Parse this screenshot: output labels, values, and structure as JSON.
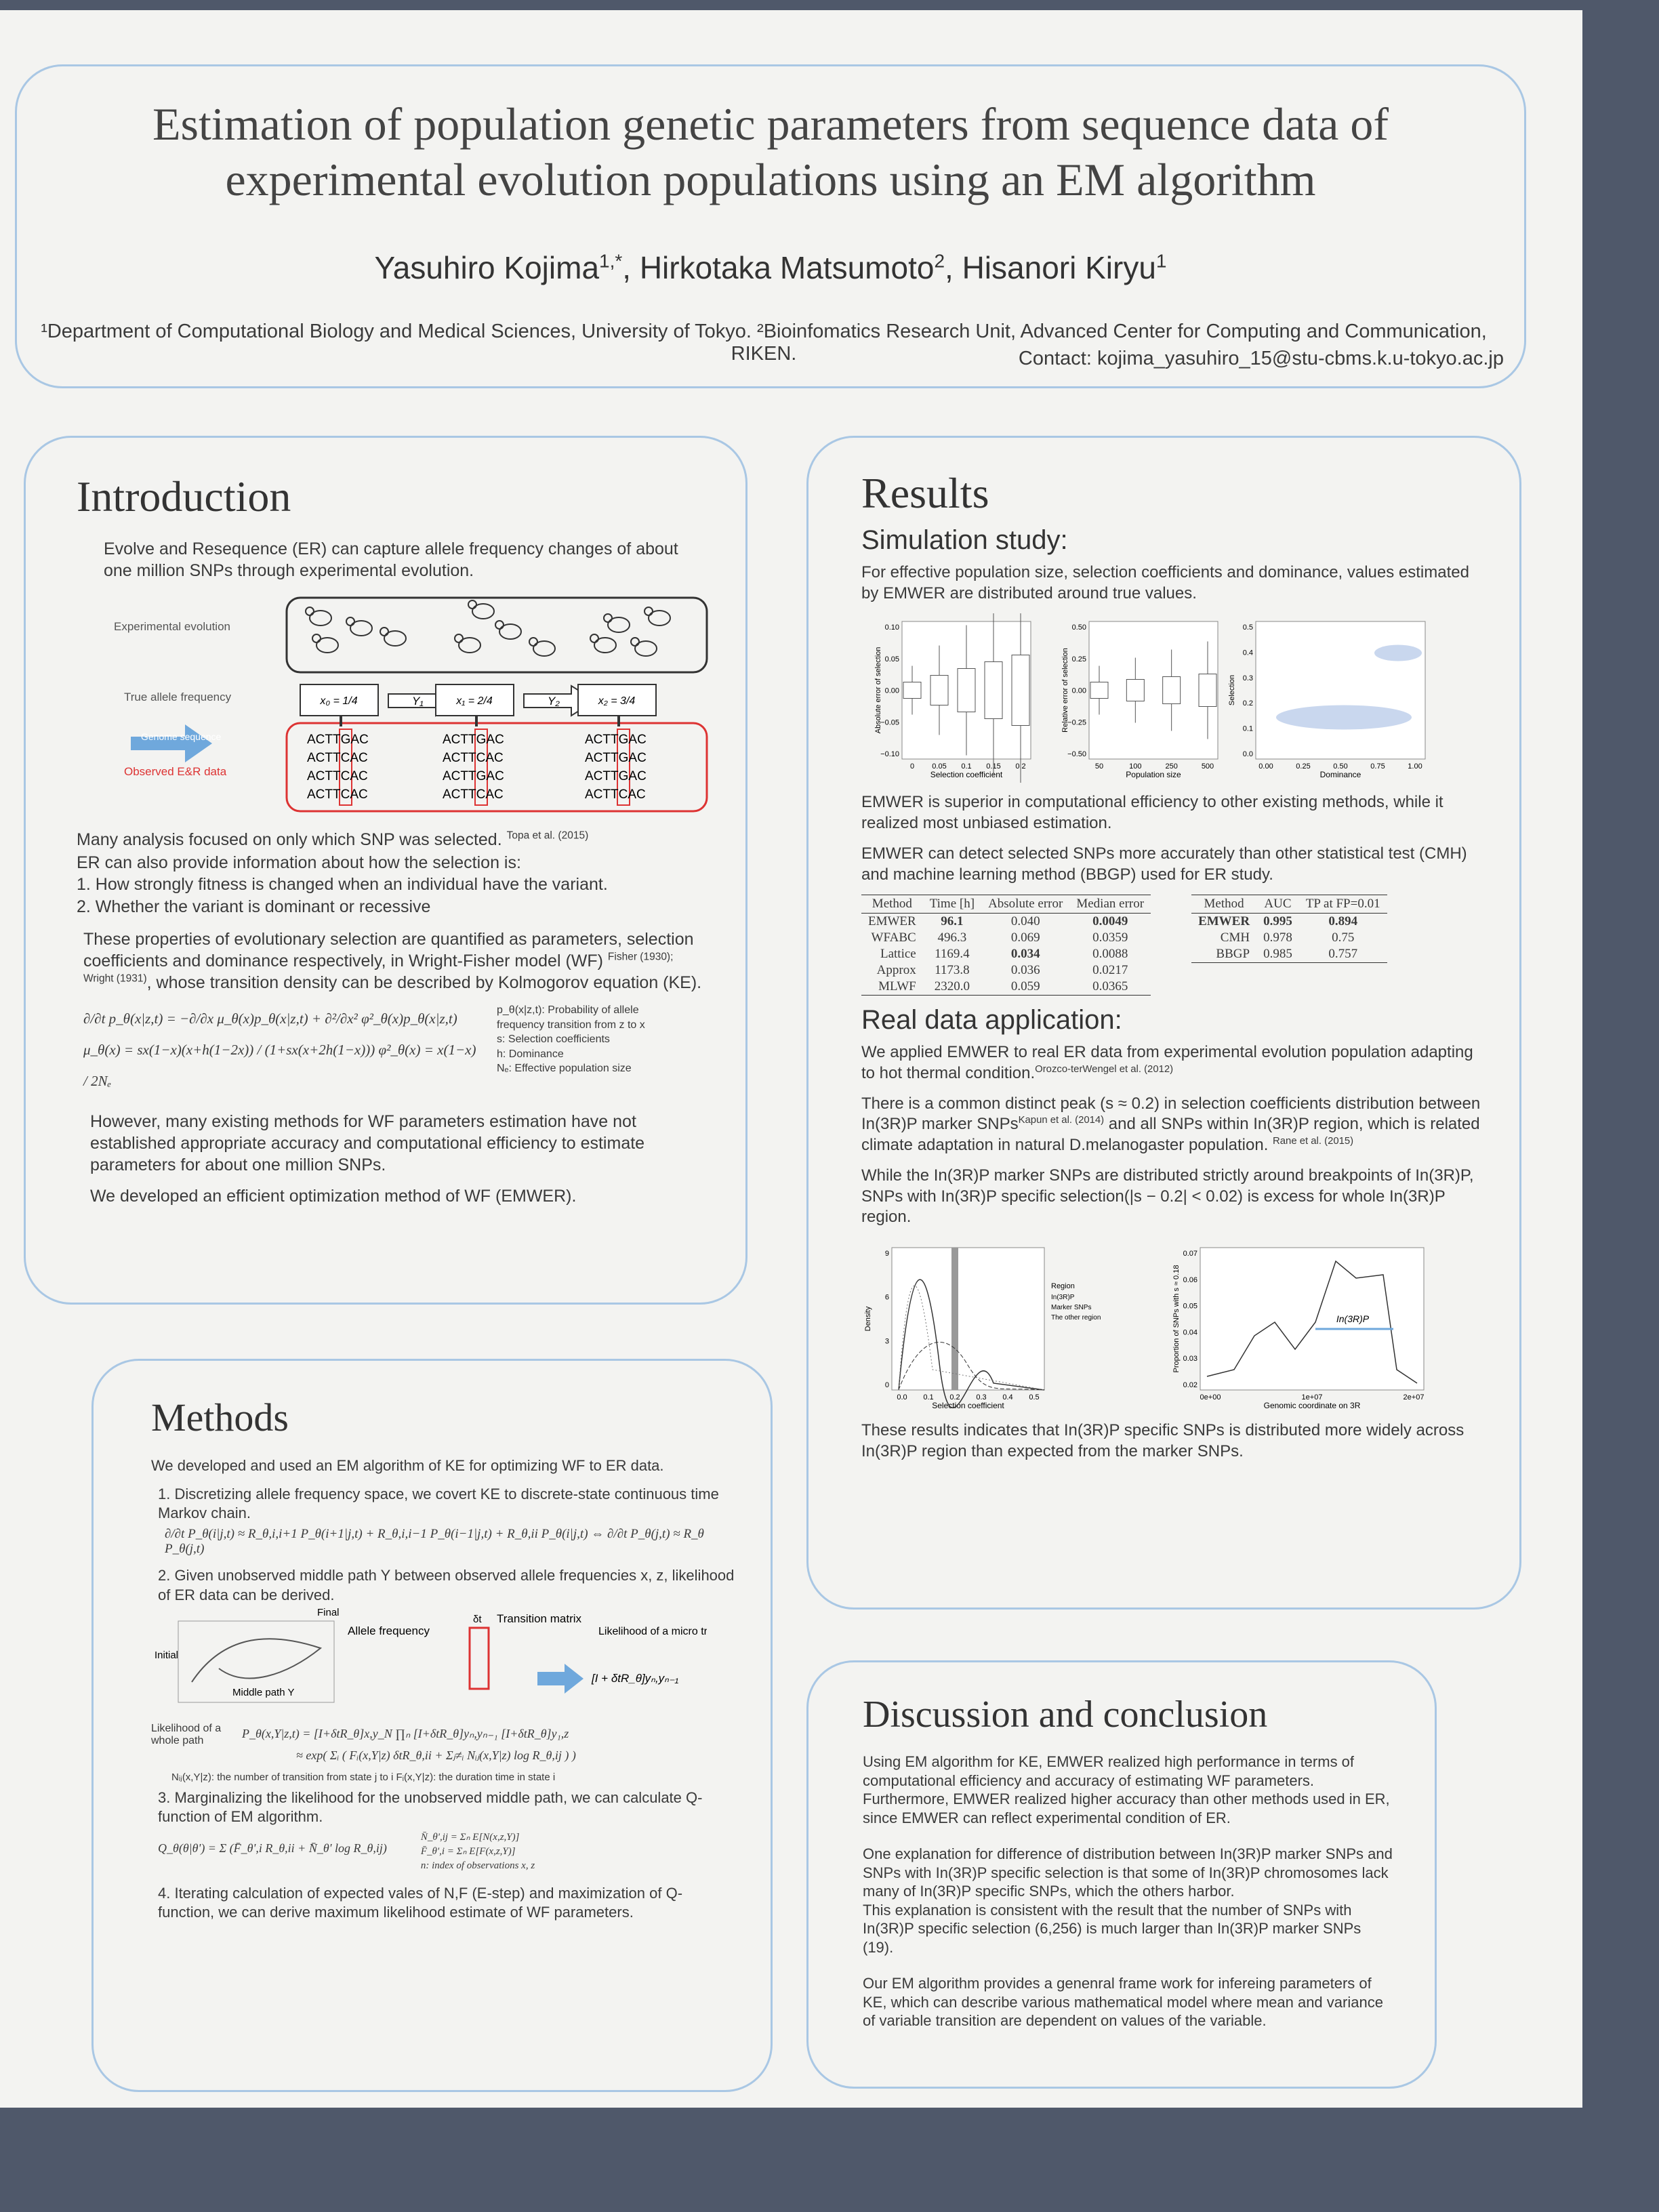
{
  "header": {
    "title": "Estimation of population genetic parameters from sequence data of experimental evolution populations using an EM algorithm",
    "authors": [
      "Yasuhiro Kojima",
      ", Hirkotaka Matsumoto",
      ", Hisanori Kiryu"
    ],
    "author_sups": [
      "1,*",
      "2",
      "1"
    ],
    "affiliation": "¹Department of Computational Biology and Medical Sciences, University of Tokyo. ²Bioinfomatics Research Unit, Advanced Center for Computing and Communication, RIKEN.",
    "contact": "Contact: kojima_yasuhiro_15@stu-cbms.k.u-tokyo.ac.jp"
  },
  "introduction": {
    "heading": "Introduction",
    "p1": "Evolve and Resequence (ER) can capture allele frequency changes of about one million SNPs through experimental evolution.",
    "figure": {
      "experimental": "Experimental evolution",
      "true_freq": "True allele frequency",
      "genome": "Genome sequence",
      "observed": "Observed E&R data",
      "states": [
        "x₀ = 1/4",
        "x₁ = 2/4",
        "x₂ = 3/4"
      ],
      "paths": [
        "Y₁",
        "Y₂"
      ],
      "reads": [
        [
          [
            "ACTT",
            "G",
            "AC"
          ],
          [
            "ACTT",
            "C",
            "AC"
          ],
          [
            "ACTT",
            "C",
            "AC"
          ],
          [
            "ACTT",
            "C",
            "AC"
          ]
        ],
        [
          [
            "ACTT",
            "G",
            "AC"
          ],
          [
            "ACTT",
            "C",
            "AC"
          ],
          [
            "ACTT",
            "G",
            "AC"
          ],
          [
            "ACTT",
            "C",
            "AC"
          ]
        ],
        [
          [
            "ACTT",
            "G",
            "AC"
          ],
          [
            "ACTT",
            "G",
            "AC"
          ],
          [
            "ACTT",
            "G",
            "AC"
          ],
          [
            "ACTT",
            "C",
            "AC"
          ]
        ]
      ]
    },
    "p2": "Many analysis focused on only which SNP was selected.",
    "p2_cite": "Topa et al. (2015)",
    "p3": "ER can also provide information about how the selection is:",
    "list": [
      "1.  How strongly fitness is changed when an individual have the variant.",
      "2.  Whether the variant is dominant or recessive"
    ],
    "p4a": "These properties of evolutionary selection are quantified as parameters, selection coefficients and dominance respectively, in Wright-Fisher model (WF)",
    "p4_cite": "Fisher (1930); Wright (1931)",
    "p4b": ", whose transition density can be described by Kolmogorov equation (KE).",
    "equations": [
      "∂/∂t p_θ(x|z,t) = −∂/∂x μ_θ(x)p_θ(x|z,t) + ∂²/∂x² φ²_θ(x)p_θ(x|z,t)",
      "μ_θ(x) = sx(1−x)(x+h(1−2x)) / (1+sx(x+2h(1−x)))    φ²_θ(x) = x(1−x) / 2Nₑ"
    ],
    "legend": [
      "p_θ(x|z,t): Probability of allele frequency transition from z to x",
      "s: Selection coefficients",
      "h: Dominance",
      "Nₑ: Effective population size"
    ],
    "p5": "However, many existing methods for WF parameters estimation have not established appropriate accuracy and computational efficiency to estimate parameters for about one million SNPs.",
    "p6": "We developed  an efficient optimization method of WF (EMWER)."
  },
  "methods": {
    "heading": "Methods",
    "p1": "We developed and used an EM algorithm of KE for optimizing WF to ER data.",
    "step1": "1. Discretizing allele frequency space, we covert KE to discrete-state continuous time Markov chain.",
    "eq1": "∂/∂t P_θ(i|j,t) ≈ R_θ,i,i+1 P_θ(i+1|j,t) + R_θ,i,i−1 P_θ(i−1|j,t) + R_θ,ii P_θ(i|j,t)   ⇔   ∂/∂t P_θ(j,t) ≈ R_θ P_θ(j,t)",
    "step2": "2. Given unobserved middle path Y between observed allele frequencies x, z, likelihood of ER data can be derived.",
    "figure": {
      "initial": "Initial",
      "final": "Final",
      "middle": "Middle path Y",
      "allele": "Allele frequency",
      "matrix": "Transition matrix",
      "micro": "Likelihood of a micro transition",
      "micro_eq": "[I + δtR_θ]yₙ,yₙ₋₁",
      "dt": "δt"
    },
    "eq2_label": "Likelihood of a whole path",
    "eq2": "P_θ(x,Y|z,t) = [I+δtR_θ]x,y_N ∏ₙ [I+δtR_θ]yₙ,yₙ₋₁ [I+δtR_θ]y₁,z",
    "eq2b": "≈ exp( Σᵢ ( Fᵢ(x,Y|z) δtR_θ,ii + Σⱼ≠ᵢ Nᵢⱼ(x,Y|z) log R_θ,ij ) )",
    "note": "Nᵢⱼ(x,Y|z): the number of transition from state j to i        Fᵢ(x,Y|z): the duration time in state i",
    "step3": "3. Marginalizing the likelihood for the unobserved middle path, we can calculate Q-function of EM algorithm.",
    "eq3": "Q_θ(θ|θ') = Σ (F̄_θ',i R_θ,ii + N̄_θ' log R_θ,ij)",
    "eq3_defs": [
      "N̄_θ',ij = Σₙ E[N(x,z,Y)]",
      "F̄_θ',i = Σₙ E[F(x,z,Y)]",
      "n: index of observations x, z"
    ],
    "step4": "4. Iterating calculation of expected vales of N,F (E-step) and maximization of Q-function, we can derive maximum likelihood estimate of WF parameters."
  },
  "results": {
    "heading": "Results",
    "sub1": "Simulation study:",
    "p1": "For effective population size, selection coefficients and dominance, values estimated by EMWER are distributed around true values.",
    "plots": [
      {
        "ylabel": "Absolute error of selection",
        "yticks": [
          "0.10",
          "0.05",
          "0.00",
          "−0.05",
          "−0.10"
        ],
        "xlabel": "Selection coefficient",
        "xticks": [
          "0",
          "0.05",
          "0.1",
          "0.15",
          "0.2"
        ]
      },
      {
        "ylabel": "Relative error of selection",
        "yticks": [
          "0.50",
          "0.25",
          "0.00",
          "−0.25",
          "−0.50"
        ],
        "xlabel": "Population size",
        "xticks": [
          "50",
          "100",
          "250",
          "500"
        ]
      },
      {
        "ylabel": "Selection",
        "yticks": [
          "0.5",
          "0.4",
          "0.3",
          "0.2",
          "0.1",
          "0.0"
        ],
        "xlabel": "Dominance",
        "xticks": [
          "0.00",
          "0.25",
          "0.50",
          "0.75",
          "1.00"
        ]
      }
    ],
    "p2": "EMWER is superior in computational efficiency to other existing methods, while it realized most unbiased estimation.",
    "p3": "EMWER can detect selected SNPs more accurately than other statistical test (CMH) and machine learning method (BBGP) used for ER study.",
    "table1": {
      "headers": [
        "Method",
        "Time [h]",
        "Absolute error",
        "Median error"
      ],
      "rows": [
        [
          "EMWER",
          "96.1",
          "0.040",
          "0.0049"
        ],
        [
          "WFABC",
          "496.3",
          "0.069",
          "0.0359"
        ],
        [
          "Lattice",
          "1169.4",
          "0.034",
          "0.0088"
        ],
        [
          "Approx",
          "1173.8",
          "0.036",
          "0.0217"
        ],
        [
          "MLWF",
          "2320.0",
          "0.059",
          "0.0365"
        ]
      ],
      "bold": [
        [
          0,
          1
        ],
        [
          2,
          2
        ],
        [
          0,
          3
        ]
      ]
    },
    "table2": {
      "headers": [
        "Method",
        "AUC",
        "TP at FP=0.01"
      ],
      "rows": [
        [
          "EMWER",
          "0.995",
          "0.894"
        ],
        [
          "CMH",
          "0.978",
          "0.75"
        ],
        [
          "BBGP",
          "0.985",
          "0.757"
        ]
      ],
      "bold": [
        [
          0,
          0
        ],
        [
          0,
          1
        ],
        [
          0,
          2
        ]
      ]
    },
    "sub2": "Real data application:",
    "p4": "We applied EMWER to real ER data from experimental evolution population adapting to hot thermal condition.",
    "p4_cite": "Orozco-terWengel et al. (2012)",
    "p5a": "There is a common distinct peak (s ≈ 0.2) in selection coefficients distribution between In(3R)P marker SNPs",
    "p5_cite1": "Kapun et al. (2014)",
    "p5b": " and all SNPs within In(3R)P region, which is related climate adaptation in natural D.melanogaster population.",
    "p5_cite2": "Rane et al. (2015)",
    "p6": "While the In(3R)P marker SNPs are distributed strictly around breakpoints of In(3R)P, SNPs with In(3R)P specific selection(|s − 0.2| < 0.02) is excess for whole In(3R)P region.",
    "plots2": [
      {
        "ylabel": "Density",
        "yticks": [
          "9",
          "6",
          "3",
          "0"
        ],
        "xlabel": "Selection coefficient",
        "xticks": [
          "0.0",
          "0.1",
          "0.2",
          "0.3",
          "0.4",
          "0.5"
        ],
        "legend_title": "Region",
        "legend": [
          "In(3R)P",
          "Marker SNPs",
          "The other region"
        ]
      },
      {
        "ylabel": "Proportion of SNPs with s ≈ 0.18",
        "yticks": [
          "0.07",
          "0.06",
          "0.05",
          "0.04",
          "0.03",
          "0.02"
        ],
        "xlabel": "Genomic coordinate on 3R",
        "xticks": [
          "0e+00",
          "1e+07",
          "2e+07"
        ],
        "annotation": "In(3R)P"
      }
    ],
    "p7": "These results indicates that In(3R)P specific SNPs is distributed more widely across In(3R)P region than expected from the marker SNPs."
  },
  "discussion": {
    "heading": "Discussion and conclusion",
    "groups": [
      [
        "Using EM algorithm for KE, EMWER realized high performance in terms of computational efficiency and accuracy of estimating WF parameters.",
        "Furthermore,  EMWER realized higher accuracy than other methods used in ER, since EMWER can reflect experimental condition of ER."
      ],
      [
        "One explanation for difference of distribution between In(3R)P marker SNPs and SNPs with In(3R)P  specific selection is that some of In(3R)P chromosomes lack many of In(3R)P specific SNPs, which the others harbor.",
        "This explanation is consistent with the result that the number of SNPs with In(3R)P specific selection (6,256) is much larger than In(3R)P marker SNPs (19)."
      ],
      [
        "Our EM algorithm provides a genenral frame work for infereing parameters of KE, which can describe various mathematical model where mean and variance of variable transition are dependent on values of the variable."
      ]
    ]
  }
}
